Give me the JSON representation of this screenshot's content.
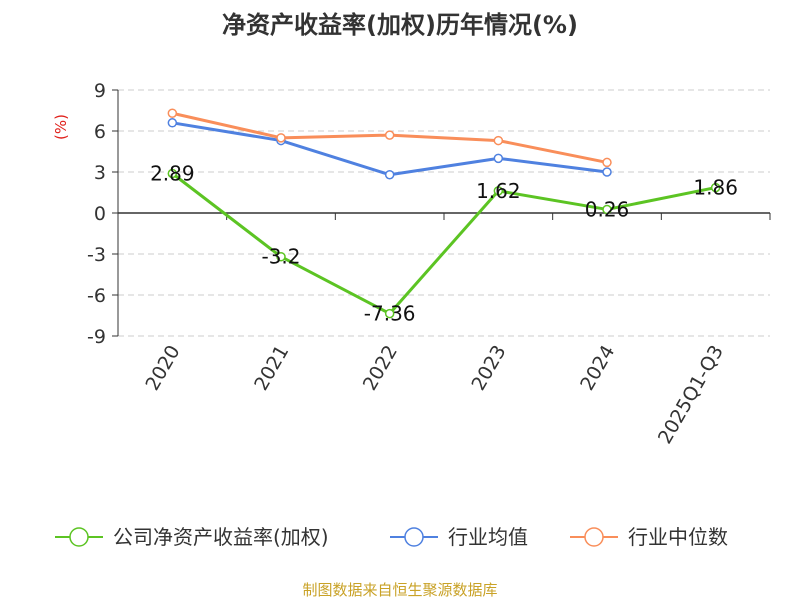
{
  "title": "净资产收益率(加权)历年情况(%)",
  "source": "制图数据来自恒生聚源数据库",
  "colors": {
    "source_text": "#c9a227",
    "unit_text": "#e0201b",
    "axis": "#333333",
    "grid": "#cccccc"
  },
  "chart_data": {
    "type": "line",
    "title": "净资产收益率(加权)历年情况(%)",
    "ylabel": "(%)",
    "xlabel": "",
    "ylim": [
      -9,
      9
    ],
    "yticks": [
      9,
      6,
      3,
      0,
      -3,
      -6,
      -9
    ],
    "ytick_labels": [
      "9",
      "6",
      "3",
      "0",
      "-3",
      "-6",
      "-9"
    ],
    "categories": [
      "2020",
      "2021",
      "2022",
      "2023",
      "2024",
      "2025Q1-Q3"
    ],
    "grid": true,
    "legend_position": "bottom",
    "series": [
      {
        "name": "公司净资产收益率(加权)",
        "color": "#5cc423",
        "values": [
          2.89,
          -3.2,
          -7.36,
          1.62,
          0.26,
          1.86
        ],
        "labels": [
          "2.89",
          "-3.2",
          "-7.36",
          "1.62",
          "0.26",
          "1.86"
        ],
        "show_labels": true
      },
      {
        "name": "行业均值",
        "color": "#4f81e0",
        "values": [
          6.6,
          5.3,
          2.8,
          4.0,
          3.0,
          null
        ],
        "show_labels": false
      },
      {
        "name": "行业中位数",
        "color": "#f98e5a",
        "values": [
          7.3,
          5.5,
          5.7,
          5.3,
          3.7,
          null
        ],
        "show_labels": false
      }
    ]
  }
}
